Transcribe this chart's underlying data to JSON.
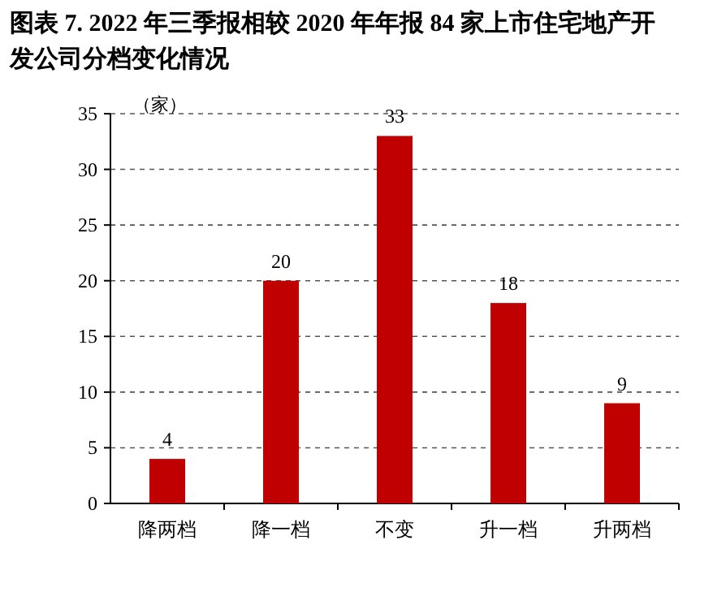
{
  "chart_data": {
    "type": "bar",
    "title": "图表 7. 2022 年三季报相较 2020 年年报 84 家上市住宅地产开发公司分档变化情况",
    "ylabel": "（家）",
    "categories": [
      "降两档",
      "降一档",
      "不变",
      "升一档",
      "升两档"
    ],
    "values": [
      4,
      20,
      33,
      18,
      9
    ],
    "color": "#c00000",
    "ylim": [
      0,
      35
    ],
    "yticks": [
      0,
      5,
      10,
      15,
      20,
      25,
      30,
      35
    ],
    "grid": "y",
    "line_style": "dashed",
    "data_labels": true
  }
}
